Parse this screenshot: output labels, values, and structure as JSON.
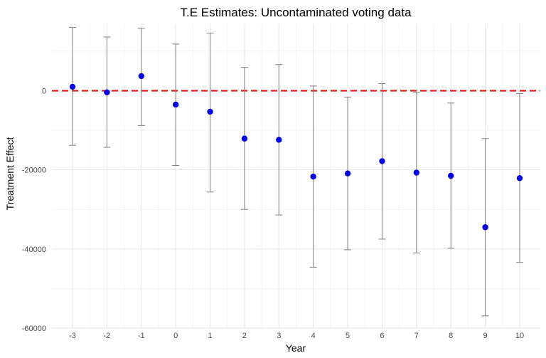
{
  "chart_data": {
    "type": "scatter",
    "title": "T.E Estimates: Uncontaminated voting data",
    "xlabel": "Year",
    "ylabel": "Treatment Effect",
    "x_ticks": [
      "-3",
      "-2",
      "-1",
      "0",
      "1",
      "2",
      "3",
      "4",
      "5",
      "6",
      "7",
      "8",
      "9",
      "10"
    ],
    "y_ticks": [
      "-60000",
      "-40000",
      "-20000",
      "0"
    ],
    "xlim": [
      -3.6,
      10.6
    ],
    "ylim": [
      -60000,
      17000
    ],
    "grid": true,
    "reference_line": {
      "y": 0,
      "style": "dashed",
      "color": "#e41a1c"
    },
    "point_color": "#0000ee",
    "errorbar_color": "#808080",
    "points": [
      {
        "x": -3,
        "y": 1000,
        "lower": -13800,
        "upper": 16000
      },
      {
        "x": -2,
        "y": -400,
        "lower": -14300,
        "upper": 13600
      },
      {
        "x": -1,
        "y": 3700,
        "lower": -8800,
        "upper": 15800
      },
      {
        "x": 0,
        "y": -3500,
        "lower": -18900,
        "upper": 11800
      },
      {
        "x": 1,
        "y": -5300,
        "lower": -25600,
        "upper": 14600
      },
      {
        "x": 2,
        "y": -12100,
        "lower": -30000,
        "upper": 5900
      },
      {
        "x": 3,
        "y": -12400,
        "lower": -31400,
        "upper": 6600
      },
      {
        "x": 4,
        "y": -21700,
        "lower": -44600,
        "upper": 1200
      },
      {
        "x": 5,
        "y": -20900,
        "lower": -40200,
        "upper": -1600
      },
      {
        "x": 6,
        "y": -17800,
        "lower": -37500,
        "upper": 1800
      },
      {
        "x": 7,
        "y": -20700,
        "lower": -41000,
        "upper": -400
      },
      {
        "x": 8,
        "y": -21500,
        "lower": -39800,
        "upper": -3100
      },
      {
        "x": 9,
        "y": -34500,
        "lower": -56900,
        "upper": -12100
      },
      {
        "x": 10,
        "y": -22100,
        "lower": -43400,
        "upper": -700
      }
    ]
  }
}
